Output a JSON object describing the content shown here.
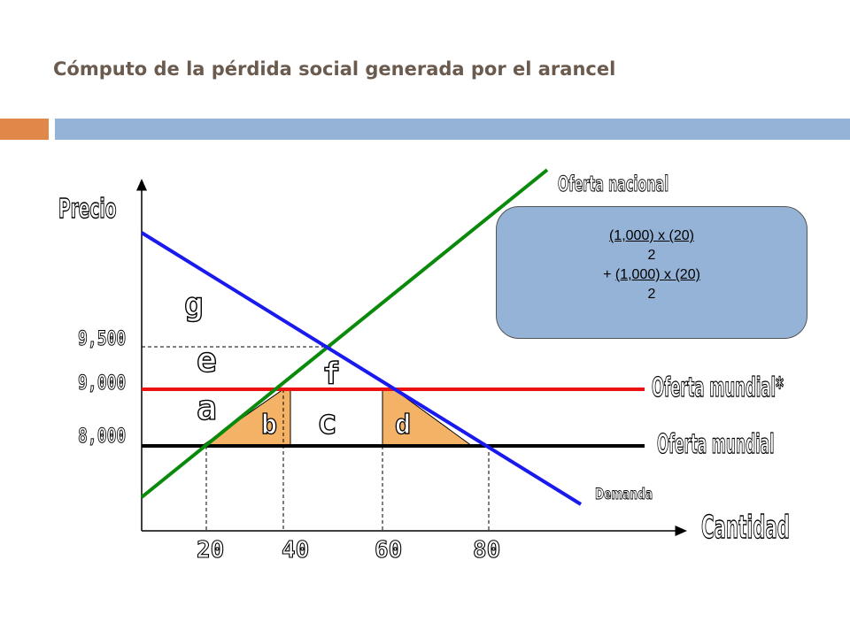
{
  "slide": {
    "title": "Cómputo de la pérdida social generada por el arancel",
    "colors": {
      "accent_orange": "#e0874a",
      "accent_blue": "#95b3d7",
      "title": "#6b5b4f"
    }
  },
  "chart_data": {
    "type": "line",
    "xlabel": "Cantidad",
    "ylabel": "Precio",
    "x_ticks": [
      "20",
      "40",
      "60",
      "80"
    ],
    "y_ticks": [
      "8,000",
      "9,000",
      "9,500"
    ],
    "series": [
      {
        "name": "Oferta nacional",
        "color": "#0a8a0a",
        "x": [
          0,
          90
        ],
        "y": [
          7000,
          10800
        ]
      },
      {
        "name": "Demanda",
        "color": "#1a1aee",
        "x": [
          0,
          100
        ],
        "y": [
          10700,
          7200
        ]
      },
      {
        "name": "Oferta mundial*",
        "color": "#ee1111",
        "x": [
          0,
          95
        ],
        "y": [
          9000,
          9000
        ]
      },
      {
        "name": "Oferta mundial",
        "color": "#000000",
        "x": [
          0,
          95
        ],
        "y": [
          8000,
          8000
        ]
      }
    ],
    "areas": [
      {
        "label": "a"
      },
      {
        "label": "b"
      },
      {
        "label": "c"
      },
      {
        "label": "d"
      },
      {
        "label": "e"
      },
      {
        "label": "f"
      },
      {
        "label": "g"
      }
    ],
    "shaded_color": "#f4b266"
  },
  "formula": {
    "line1": "(1,000) x (20)",
    "line2": "2",
    "line3_prefix": "+ ",
    "line3": "(1,000) x (20)",
    "line4": "2"
  }
}
